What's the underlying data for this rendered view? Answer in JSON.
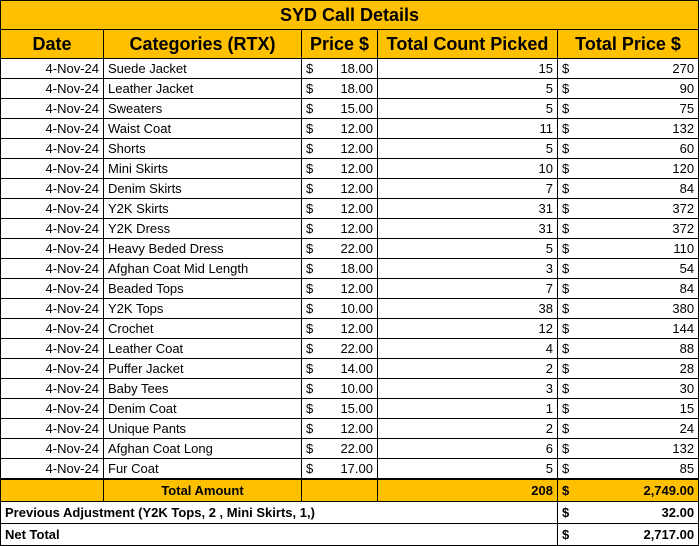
{
  "title": "SYD Call Details",
  "headers": {
    "date": "Date",
    "category": "Categories (RTX)",
    "price": "Price $",
    "count": "Total Count Picked",
    "total": "Total Price $"
  },
  "currency_symbol": "$",
  "rows": [
    {
      "date": "4-Nov-24",
      "category": "Suede Jacket",
      "price": "18.00",
      "count": "15",
      "total": "270"
    },
    {
      "date": "4-Nov-24",
      "category": "Leather Jacket",
      "price": "18.00",
      "count": "5",
      "total": "90"
    },
    {
      "date": "4-Nov-24",
      "category": "Sweaters",
      "price": "15.00",
      "count": "5",
      "total": "75"
    },
    {
      "date": "4-Nov-24",
      "category": "Waist Coat",
      "price": "12.00",
      "count": "11",
      "total": "132"
    },
    {
      "date": "4-Nov-24",
      "category": "Shorts",
      "price": "12.00",
      "count": "5",
      "total": "60"
    },
    {
      "date": "4-Nov-24",
      "category": "Mini Skirts",
      "price": "12.00",
      "count": "10",
      "total": "120"
    },
    {
      "date": "4-Nov-24",
      "category": "Denim Skirts",
      "price": "12.00",
      "count": "7",
      "total": "84"
    },
    {
      "date": "4-Nov-24",
      "category": "Y2K Skirts",
      "price": "12.00",
      "count": "31",
      "total": "372"
    },
    {
      "date": "4-Nov-24",
      "category": "Y2K Dress",
      "price": "12.00",
      "count": "31",
      "total": "372"
    },
    {
      "date": "4-Nov-24",
      "category": "Heavy Beded Dress",
      "price": "22.00",
      "count": "5",
      "total": "110"
    },
    {
      "date": "4-Nov-24",
      "category": "Afghan Coat Mid Length",
      "price": "18.00",
      "count": "3",
      "total": "54"
    },
    {
      "date": "4-Nov-24",
      "category": "Beaded Tops",
      "price": "12.00",
      "count": "7",
      "total": "84"
    },
    {
      "date": "4-Nov-24",
      "category": "Y2K Tops",
      "price": "10.00",
      "count": "38",
      "total": "380"
    },
    {
      "date": "4-Nov-24",
      "category": "Crochet",
      "price": "12.00",
      "count": "12",
      "total": "144"
    },
    {
      "date": "4-Nov-24",
      "category": "Leather Coat",
      "price": "22.00",
      "count": "4",
      "total": "88"
    },
    {
      "date": "4-Nov-24",
      "category": "Puffer Jacket",
      "price": "14.00",
      "count": "2",
      "total": "28"
    },
    {
      "date": "4-Nov-24",
      "category": "Baby Tees",
      "price": "10.00",
      "count": "3",
      "total": "30"
    },
    {
      "date": "4-Nov-24",
      "category": "Denim Coat",
      "price": "15.00",
      "count": "1",
      "total": "15"
    },
    {
      "date": "4-Nov-24",
      "category": "Unique Pants",
      "price": "12.00",
      "count": "2",
      "total": "24"
    },
    {
      "date": "4-Nov-24",
      "category": "Afghan Coat Long",
      "price": "22.00",
      "count": "6",
      "total": "132"
    },
    {
      "date": "4-Nov-24",
      "category": "Fur Coat",
      "price": "17.00",
      "count": "5",
      "total": "85"
    }
  ],
  "total_row": {
    "label": "Total Amount",
    "count": "208",
    "amount": "2,749.00"
  },
  "adjustment": {
    "label": "Previous Adjustment (Y2K Tops, 2 , Mini Skirts, 1,)",
    "amount": "32.00"
  },
  "net_total": {
    "label": "Net Total",
    "amount": "2,717.00"
  }
}
